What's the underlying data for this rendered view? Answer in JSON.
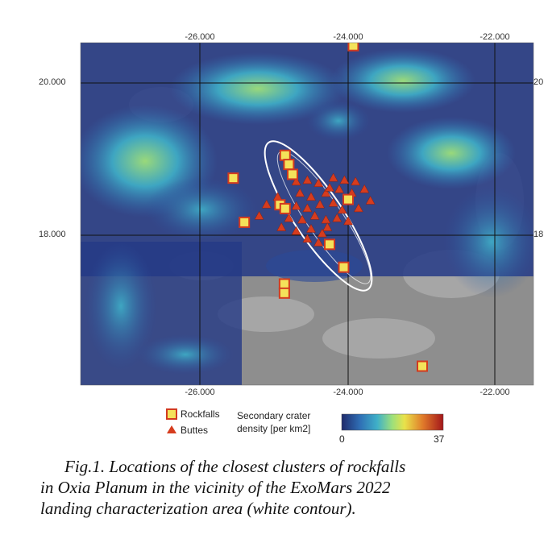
{
  "map": {
    "lon_ticks_top": [
      "-26.000",
      "-24.000",
      "-22.000"
    ],
    "lon_ticks_bottom": [
      "-26.000",
      "-24.000",
      "-22.000"
    ],
    "lat_ticks_left": [
      "20.000",
      "18.000"
    ],
    "lat_ticks_right": [
      "20",
      "18"
    ],
    "layers": {
      "basemap": "grey-relief",
      "density_colormap": [
        "#1f2a6b",
        "#2f6fb5",
        "#3fb0c8",
        "#9ee07a",
        "#e9e24a",
        "#e07a2a",
        "#a3161a"
      ],
      "rockfall_marker_fill": "#f4e25a",
      "rockfall_marker_border": "#d23a1f",
      "butte_marker_fill": "#d63c1e",
      "contour_color": "#ffffff"
    },
    "rockfalls": [
      {
        "lon": -23.93,
        "lat": 20.49
      },
      {
        "lon": -25.55,
        "lat": 18.75
      },
      {
        "lon": -24.85,
        "lat": 19.05
      },
      {
        "lon": -24.8,
        "lat": 18.93
      },
      {
        "lon": -24.75,
        "lat": 18.8
      },
      {
        "lon": -24.92,
        "lat": 18.4
      },
      {
        "lon": -24.85,
        "lat": 18.35
      },
      {
        "lon": -24.0,
        "lat": 18.47
      },
      {
        "lon": -25.4,
        "lat": 18.17
      },
      {
        "lon": -24.25,
        "lat": 17.88
      },
      {
        "lon": -24.06,
        "lat": 17.58
      },
      {
        "lon": -24.86,
        "lat": 17.36
      },
      {
        "lon": -24.86,
        "lat": 17.24
      },
      {
        "lon": -23.0,
        "lat": 16.28
      }
    ],
    "buttes": [
      {
        "lon": -24.7,
        "lat": 18.7
      },
      {
        "lon": -24.55,
        "lat": 18.72
      },
      {
        "lon": -24.4,
        "lat": 18.68
      },
      {
        "lon": -24.2,
        "lat": 18.75
      },
      {
        "lon": -24.05,
        "lat": 18.72
      },
      {
        "lon": -23.9,
        "lat": 18.7
      },
      {
        "lon": -23.78,
        "lat": 18.6
      },
      {
        "lon": -24.65,
        "lat": 18.55
      },
      {
        "lon": -24.5,
        "lat": 18.5
      },
      {
        "lon": -24.3,
        "lat": 18.55
      },
      {
        "lon": -24.12,
        "lat": 18.6
      },
      {
        "lon": -23.95,
        "lat": 18.55
      },
      {
        "lon": -24.95,
        "lat": 18.5
      },
      {
        "lon": -25.1,
        "lat": 18.4
      },
      {
        "lon": -24.7,
        "lat": 18.38
      },
      {
        "lon": -24.55,
        "lat": 18.35
      },
      {
        "lon": -24.38,
        "lat": 18.4
      },
      {
        "lon": -24.2,
        "lat": 18.42
      },
      {
        "lon": -24.08,
        "lat": 18.33
      },
      {
        "lon": -23.86,
        "lat": 18.35
      },
      {
        "lon": -24.8,
        "lat": 18.22
      },
      {
        "lon": -24.62,
        "lat": 18.2
      },
      {
        "lon": -24.45,
        "lat": 18.25
      },
      {
        "lon": -24.3,
        "lat": 18.2
      },
      {
        "lon": -24.15,
        "lat": 18.22
      },
      {
        "lon": -24.0,
        "lat": 18.18
      },
      {
        "lon": -24.9,
        "lat": 18.1
      },
      {
        "lon": -24.7,
        "lat": 18.05
      },
      {
        "lon": -24.5,
        "lat": 18.08
      },
      {
        "lon": -24.35,
        "lat": 18.02
      },
      {
        "lon": -24.55,
        "lat": 17.95
      },
      {
        "lon": -24.4,
        "lat": 17.9
      },
      {
        "lon": -24.28,
        "lat": 18.1
      },
      {
        "lon": -25.2,
        "lat": 18.25
      },
      {
        "lon": -24.25,
        "lat": 18.62
      },
      {
        "lon": -23.7,
        "lat": 18.45
      }
    ]
  },
  "legend": {
    "rockfalls": "Rockfalls",
    "buttes": "Buttes",
    "density_title_line1": "Secondary crater",
    "density_title_line2": "density [per km2]",
    "colorbar_min": "0",
    "colorbar_max": "37"
  },
  "caption": {
    "line1": "Fig.1. Locations of the closest clusters of rockfalls",
    "line2": "in Oxia Planum in the vicinity of the ExoMars 2022",
    "line3": "landing characterization area (white contour)."
  }
}
